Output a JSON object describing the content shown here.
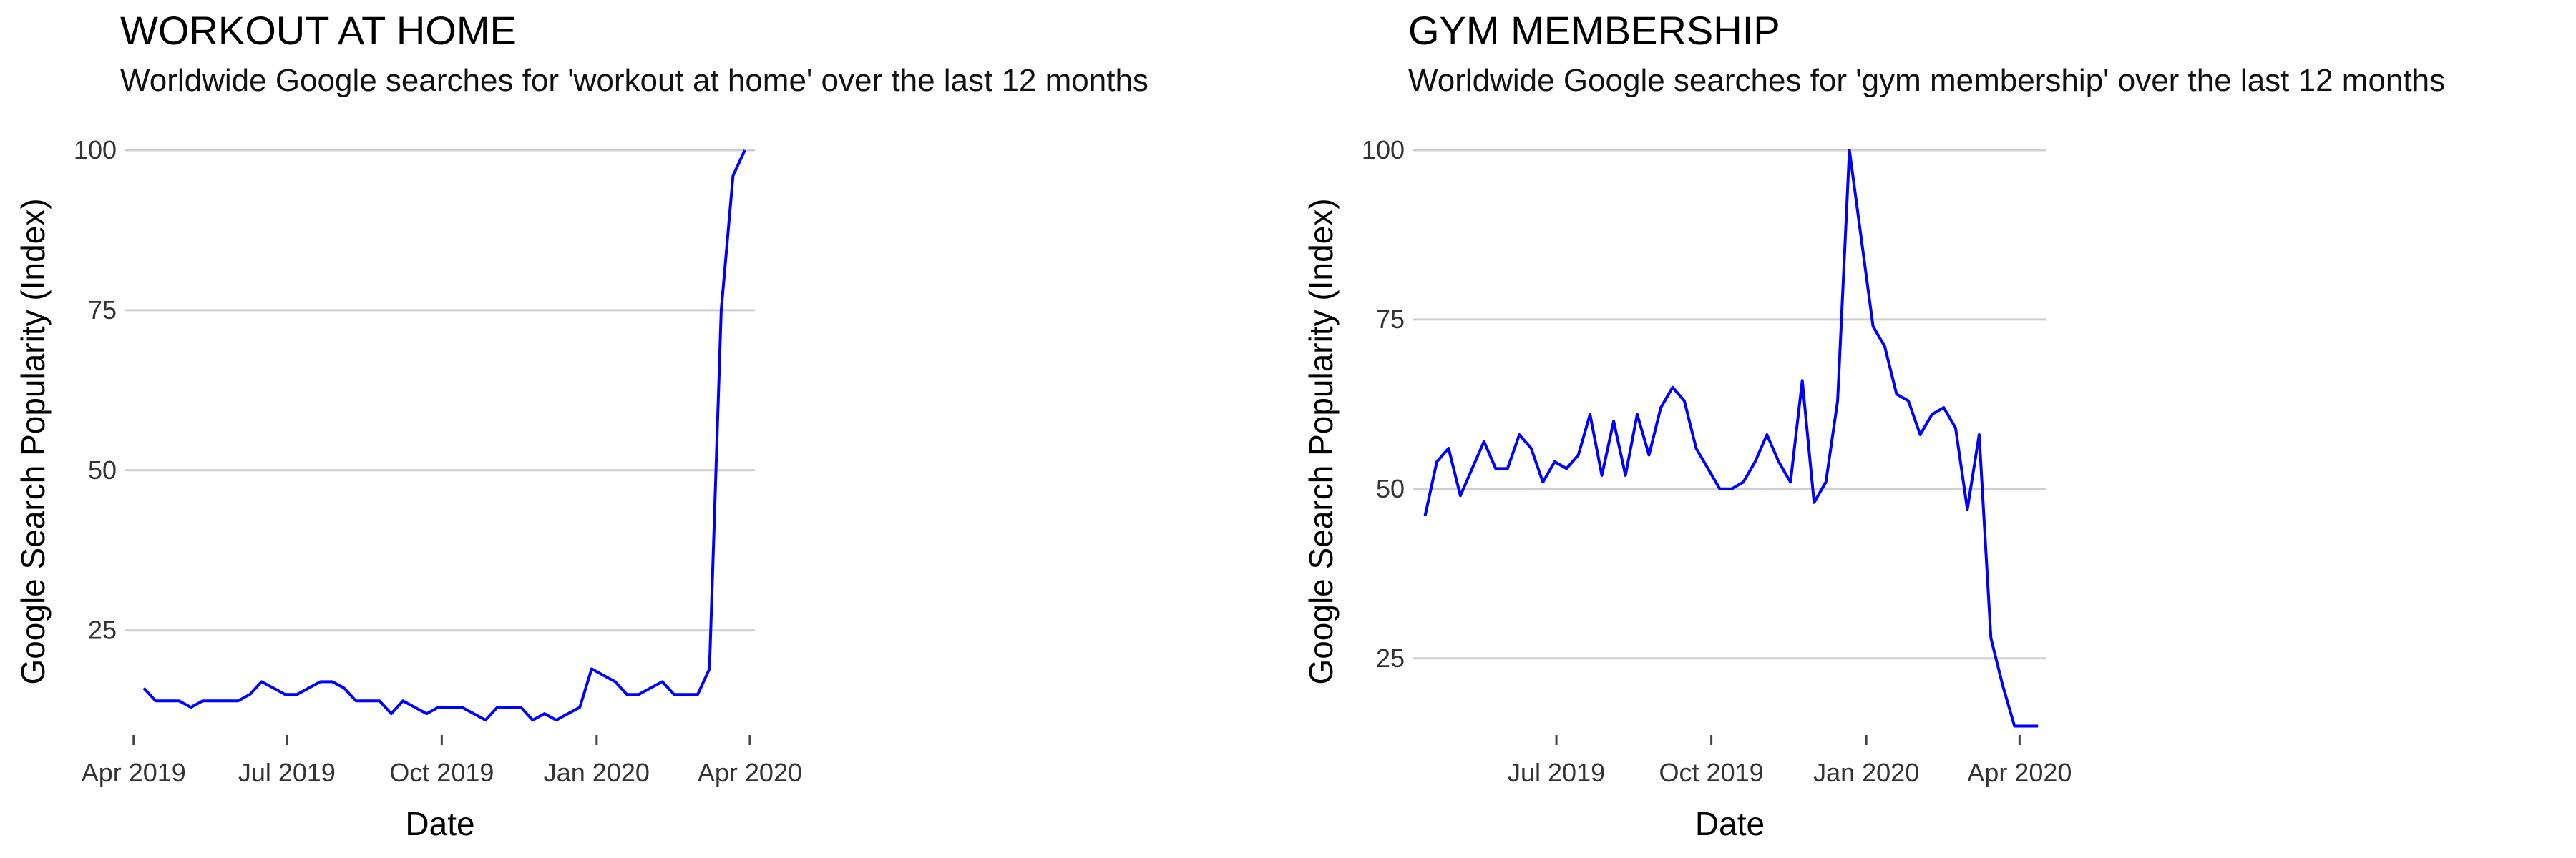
{
  "chart_data": [
    {
      "type": "line",
      "title": "WORKOUT AT HOME",
      "subtitle": "Worldwide Google searches for 'workout at home' over the last 12 months",
      "xlabel": "Date",
      "ylabel": "Google Search Popularity (Index)",
      "ylim": [
        9,
        100
      ],
      "yticks": [
        25,
        50,
        75,
        100
      ],
      "xlim": [
        "2019-03-27",
        "2020-04-04"
      ],
      "xticks": [
        {
          "date": "2019-04-01",
          "label": "Apr 2019"
        },
        {
          "date": "2019-07-01",
          "label": "Jul 2019"
        },
        {
          "date": "2019-10-01",
          "label": "Oct 2019"
        },
        {
          "date": "2020-01-01",
          "label": "Jan 2020"
        },
        {
          "date": "2020-04-01",
          "label": "Apr 2020"
        }
      ],
      "grid": "horizontal",
      "line_color": "#0000ff",
      "x": [
        "2019-04-07",
        "2019-04-14",
        "2019-04-21",
        "2019-04-28",
        "2019-05-05",
        "2019-05-12",
        "2019-05-19",
        "2019-05-26",
        "2019-06-02",
        "2019-06-09",
        "2019-06-16",
        "2019-06-23",
        "2019-06-30",
        "2019-07-07",
        "2019-07-14",
        "2019-07-21",
        "2019-07-28",
        "2019-08-04",
        "2019-08-11",
        "2019-08-18",
        "2019-08-25",
        "2019-09-01",
        "2019-09-08",
        "2019-09-15",
        "2019-09-22",
        "2019-09-29",
        "2019-10-06",
        "2019-10-13",
        "2019-10-20",
        "2019-10-27",
        "2019-11-03",
        "2019-11-10",
        "2019-11-17",
        "2019-11-24",
        "2019-12-01",
        "2019-12-08",
        "2019-12-15",
        "2019-12-22",
        "2019-12-29",
        "2020-01-05",
        "2020-01-12",
        "2020-01-19",
        "2020-01-26",
        "2020-02-02",
        "2020-02-09",
        "2020-02-16",
        "2020-02-23",
        "2020-03-01",
        "2020-03-08",
        "2020-03-15",
        "2020-03-22",
        "2020-03-29"
      ],
      "values": [
        16,
        14,
        14,
        14,
        13,
        14,
        14,
        14,
        14,
        15,
        17,
        16,
        15,
        15,
        16,
        17,
        17,
        16,
        14,
        14,
        14,
        12,
        14,
        13,
        12,
        13,
        13,
        13,
        12,
        11,
        13,
        13,
        13,
        11,
        12,
        11,
        12,
        13,
        19,
        18,
        17,
        15,
        15,
        16,
        17,
        15,
        15,
        15,
        19,
        75,
        96,
        100
      ]
    },
    {
      "type": "line",
      "title": "GYM MEMBERSHIP",
      "subtitle": "Worldwide Google searches for 'gym membership' over the last 12 months",
      "xlabel": "Date",
      "ylabel": "Google Search Popularity (Index)",
      "ylim": [
        14,
        100
      ],
      "yticks": [
        25,
        50,
        75,
        100
      ],
      "xlim": [
        "2019-04-07",
        "2020-04-17"
      ],
      "xticks": [
        {
          "date": "2019-07-01",
          "label": "Jul 2019"
        },
        {
          "date": "2019-10-01",
          "label": "Oct 2019"
        },
        {
          "date": "2020-01-01",
          "label": "Jan 2020"
        },
        {
          "date": "2020-04-01",
          "label": "Apr 2020"
        }
      ],
      "grid": "horizontal",
      "line_color": "#0000ff",
      "x": [
        "2019-04-14",
        "2019-04-21",
        "2019-04-28",
        "2019-05-05",
        "2019-05-12",
        "2019-05-19",
        "2019-05-26",
        "2019-06-02",
        "2019-06-09",
        "2019-06-16",
        "2019-06-23",
        "2019-06-30",
        "2019-07-07",
        "2019-07-14",
        "2019-07-21",
        "2019-07-28",
        "2019-08-04",
        "2019-08-11",
        "2019-08-18",
        "2019-08-25",
        "2019-09-01",
        "2019-09-08",
        "2019-09-15",
        "2019-09-22",
        "2019-09-29",
        "2019-10-06",
        "2019-10-13",
        "2019-10-20",
        "2019-10-27",
        "2019-11-03",
        "2019-11-10",
        "2019-11-17",
        "2019-11-24",
        "2019-12-01",
        "2019-12-08",
        "2019-12-15",
        "2019-12-22",
        "2019-12-29",
        "2020-01-05",
        "2020-01-12",
        "2020-01-19",
        "2020-01-26",
        "2020-02-02",
        "2020-02-09",
        "2020-02-16",
        "2020-02-23",
        "2020-03-01",
        "2020-03-08",
        "2020-03-15",
        "2020-03-22",
        "2020-03-29",
        "2020-04-05",
        "2020-04-12"
      ],
      "values": [
        46,
        54,
        56,
        49,
        53,
        57,
        53,
        53,
        58,
        56,
        51,
        54,
        53,
        55,
        61,
        52,
        60,
        52,
        61,
        55,
        62,
        65,
        63,
        56,
        53,
        50,
        50,
        51,
        54,
        58,
        54,
        51,
        66,
        48,
        51,
        63,
        100,
        87,
        74,
        71,
        64,
        63,
        58,
        61,
        62,
        59,
        47,
        58,
        28,
        21,
        15,
        15,
        15
      ]
    }
  ]
}
